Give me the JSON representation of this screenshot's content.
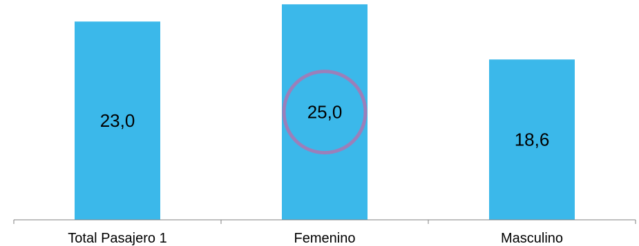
{
  "chart_data": {
    "type": "bar",
    "categories": [
      "Total Pasajero 1",
      "Femenino",
      "Masculino"
    ],
    "values": [
      23.0,
      25.0,
      18.6
    ],
    "value_labels": [
      "23,0",
      "25,0",
      "18,6"
    ],
    "title": "",
    "xlabel": "",
    "ylabel": "",
    "ylim": [
      0,
      25.5
    ],
    "grid": false,
    "legend": "none",
    "highlight": {
      "category": "Femenino",
      "shape": "circle"
    }
  },
  "colors": {
    "bar": "#3bb8ea",
    "axis": "#808080",
    "highlight_ring": "#9b7fba",
    "text": "#000000"
  }
}
